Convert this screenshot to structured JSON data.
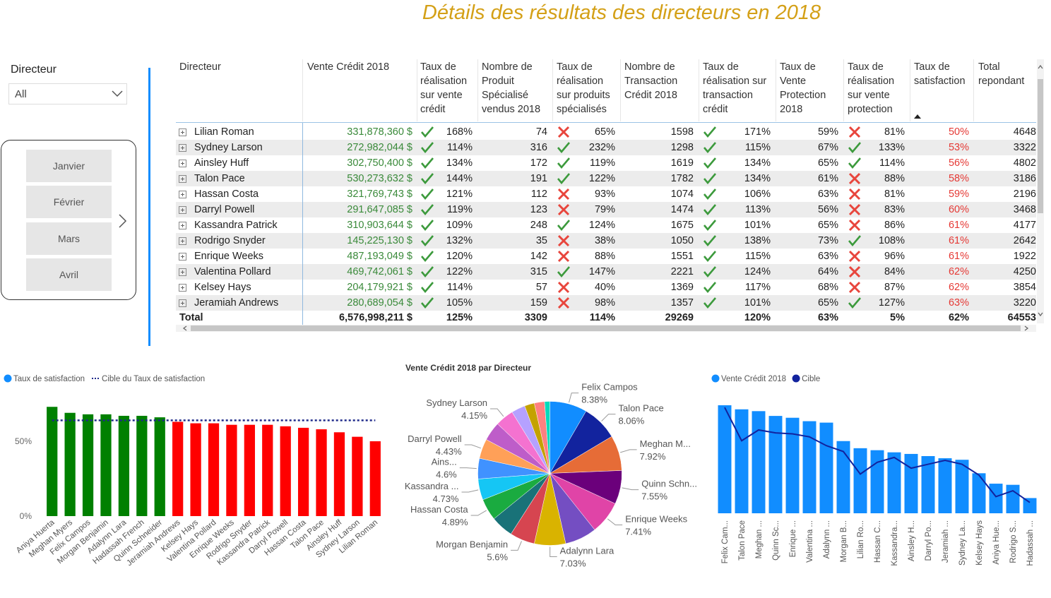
{
  "title": "Détails des résultats des directeurs en 2018",
  "slicer": {
    "label": "Directeur",
    "value": "All"
  },
  "months": [
    "Janvier",
    "Février",
    "Mars",
    "Avril"
  ],
  "table": {
    "headers": [
      "Directeur",
      "Vente Crédit 2018",
      "Taux de réalisation sur vente crédit",
      "Nombre de Produit Spécialisé vendus 2018",
      "Taux de réalisation sur produits spécialisés",
      "Nombre de Transaction Crédit 2018",
      "Taux de réalisation sur transaction crédit",
      "Taux de Vente Protection 2018",
      "Taux de réalisation sur vente protection",
      "Taux de satisfaction",
      "Total repondant"
    ],
    "rows": [
      {
        "cells": [
          "Lilian Roman",
          "331,878,360 $",
          "168%",
          "74",
          "65%",
          "1598",
          "171%",
          "59%",
          "81%",
          "50%",
          "4648"
        ],
        "status": [
          "check",
          "cross",
          "check",
          "cross"
        ]
      },
      {
        "cells": [
          "Sydney Larson",
          "272,982,044 $",
          "114%",
          "316",
          "232%",
          "1298",
          "115%",
          "67%",
          "133%",
          "53%",
          "3322"
        ],
        "status": [
          "check",
          "check",
          "check",
          "check"
        ]
      },
      {
        "cells": [
          "Ainsley Huff",
          "302,750,400 $",
          "134%",
          "172",
          "119%",
          "1619",
          "134%",
          "65%",
          "114%",
          "56%",
          "4802"
        ],
        "status": [
          "check",
          "check",
          "check",
          "check"
        ]
      },
      {
        "cells": [
          "Talon Pace",
          "530,273,632 $",
          "144%",
          "191",
          "122%",
          "1782",
          "134%",
          "61%",
          "88%",
          "58%",
          "3186"
        ],
        "status": [
          "check",
          "check",
          "check",
          "cross"
        ]
      },
      {
        "cells": [
          "Hassan Costa",
          "321,769,743 $",
          "121%",
          "112",
          "93%",
          "1074",
          "106%",
          "63%",
          "81%",
          "59%",
          "2196"
        ],
        "status": [
          "check",
          "cross",
          "check",
          "cross"
        ]
      },
      {
        "cells": [
          "Darryl Powell",
          "291,647,085 $",
          "119%",
          "123",
          "79%",
          "1474",
          "113%",
          "56%",
          "83%",
          "60%",
          "3468"
        ],
        "status": [
          "check",
          "cross",
          "check",
          "cross"
        ]
      },
      {
        "cells": [
          "Kassandra Patrick",
          "310,903,644 $",
          "109%",
          "248",
          "124%",
          "1675",
          "101%",
          "65%",
          "86%",
          "61%",
          "4177"
        ],
        "status": [
          "check",
          "check",
          "check",
          "cross"
        ]
      },
      {
        "cells": [
          "Rodrigo Snyder",
          "145,225,130 $",
          "132%",
          "35",
          "38%",
          "1050",
          "138%",
          "73%",
          "108%",
          "61%",
          "2642"
        ],
        "status": [
          "check",
          "cross",
          "check",
          "check"
        ]
      },
      {
        "cells": [
          "Enrique Weeks",
          "487,193,049 $",
          "120%",
          "142",
          "88%",
          "1551",
          "115%",
          "63%",
          "96%",
          "61%",
          "1922"
        ],
        "status": [
          "check",
          "cross",
          "check",
          "cross"
        ]
      },
      {
        "cells": [
          "Valentina Pollard",
          "469,742,061 $",
          "122%",
          "315",
          "147%",
          "2221",
          "124%",
          "64%",
          "84%",
          "62%",
          "4250"
        ],
        "status": [
          "check",
          "check",
          "check",
          "cross"
        ]
      },
      {
        "cells": [
          "Kelsey Hays",
          "204,179,921 $",
          "114%",
          "57",
          "40%",
          "1369",
          "117%",
          "68%",
          "87%",
          "62%",
          "3854"
        ],
        "status": [
          "check",
          "cross",
          "check",
          "cross"
        ]
      },
      {
        "cells": [
          "Jeramiah Andrews",
          "280,689,054 $",
          "105%",
          "159",
          "98%",
          "1357",
          "101%",
          "65%",
          "127%",
          "63%",
          "3220"
        ],
        "status": [
          "check",
          "cross",
          "check",
          "check"
        ]
      }
    ],
    "total": [
      "Total",
      "6,576,998,211 $",
      "125%",
      "3309",
      "114%",
      "29269",
      "120%",
      "63%",
      "5%",
      "62%",
      "64553"
    ]
  },
  "chart_data": [
    {
      "type": "bar",
      "categories": [
        "Aniya Huerta",
        "Meghan Myers",
        "Felix Campos",
        "Morgan Benjamin",
        "Adalynn Lara",
        "Hadassah French",
        "Quinn Schneider",
        "Jeramiah Andrews",
        "Kelsey Hays",
        "Valentina Pollard",
        "Enrique Weeks",
        "Rodrigo Snyder",
        "Kassandra Patrick",
        "Darryl Powell",
        "Hassan Costa",
        "Talon Pace",
        "Ainsley Huff",
        "Sydney Larson",
        "Lilian Roman"
      ],
      "series": [
        {
          "name": "Taux de satisfaction",
          "color": "#118DFF",
          "colors": [
            "#008000",
            "#008000",
            "#008000",
            "#008000",
            "#008000",
            "#008000",
            "#008000",
            "#FF0000",
            "#FF0000",
            "#FF0000",
            "#FF0000",
            "#FF0000",
            "#FF0000",
            "#FF0000",
            "#FF0000",
            "#FF0000",
            "#FF0000",
            "#FF0000",
            "#FF0000"
          ],
          "values": [
            73,
            69,
            68,
            68,
            67,
            67,
            66,
            63,
            62,
            62,
            61,
            61,
            61,
            60,
            59,
            58,
            56,
            53,
            50
          ]
        },
        {
          "name": "Cible du Taux de satisfaction",
          "type": "line",
          "dash": "dotted",
          "color": "#1F2A8A",
          "values": [
            64,
            64,
            64,
            64,
            64,
            64,
            64,
            64,
            64,
            64,
            64,
            64,
            64,
            64,
            64,
            64,
            64,
            64,
            64
          ]
        }
      ],
      "ylim": [
        0,
        80
      ],
      "yticks": [
        {
          "value": 0,
          "label": "0%"
        },
        {
          "value": 50,
          "label": "50%"
        }
      ]
    },
    {
      "type": "pie",
      "title": "Vente Crédit 2018 par Directeur",
      "categories": [
        "Felix Campos",
        "Talon Pace",
        "Meghan M...",
        "Quinn Schn...",
        "Enrique Weeks",
        null,
        "Adalynn Lara",
        "Morgan Benjamin",
        null,
        "Hassan Costa",
        "Kassandra ...",
        "Ains...",
        "Darryl Powell",
        null,
        "Sydney Larson",
        null,
        null,
        null,
        null
      ],
      "values": [
        8.38,
        8.06,
        7.92,
        7.55,
        7.41,
        7.14,
        7.03,
        5.6,
        5.05,
        4.89,
        4.73,
        4.6,
        4.43,
        4.27,
        4.15,
        3.1,
        2.21,
        2.3,
        1.18
      ],
      "value_labels": [
        "8.38%",
        "8.06%",
        "7.92%",
        "7.55%",
        "7.41%",
        null,
        "7.03%",
        "5.6%",
        null,
        "4.89%",
        "4.73%",
        "4.6%",
        "4.43%",
        null,
        "4.15%",
        null,
        null,
        null,
        null
      ],
      "colors": [
        "#118DFF",
        "#12239E",
        "#E66C37",
        "#6B007B",
        "#E044A7",
        "#744EC2",
        "#D9B300",
        "#D64550",
        "#197278",
        "#1AAB40",
        "#15C6F4",
        "#4092FF",
        "#FFA058",
        "#BE5DC9",
        "#F472D0",
        "#B5A1FF",
        "#C4A200",
        "#FF8080",
        "#00DBBC"
      ]
    },
    {
      "type": "bar",
      "categories": [
        "Felix Cam...",
        "Talon Pace",
        "Meghan ...",
        "Quinn Sc...",
        "Enrique ...",
        "Valentina ...",
        "Adalynn ...",
        "Morgan B...",
        "Lilian Ro...",
        "Hassan C...",
        "Kassandra...",
        "Ainsley H...",
        "Darryl Po...",
        "Jeramiah ...",
        "Sydney La...",
        "Kelsey Hays",
        "Aniya Hue...",
        "Rodrigo S...",
        "Hadassah ..."
      ],
      "series": [
        {
          "name": "Vente Crédit 2018",
          "color": "#118DFF",
          "values": [
            551000000,
            530273632,
            521000000,
            496600000,
            487193049,
            469742061,
            462400000,
            368300000,
            331878360,
            321769743,
            310903644,
            302750400,
            291647085,
            280689054,
            272982044,
            204179921,
            151000000,
            145225130,
            77600000
          ]
        },
        {
          "name": "Cible",
          "type": "line",
          "color": "#12239E",
          "values": [
            540000000,
            370000000,
            425000000,
            410000000,
            405000000,
            390000000,
            345000000,
            315000000,
            200000000,
            260000000,
            285000000,
            230000000,
            250000000,
            270000000,
            250000000,
            195000000,
            85000000,
            115000000,
            55000000
          ]
        }
      ]
    }
  ]
}
